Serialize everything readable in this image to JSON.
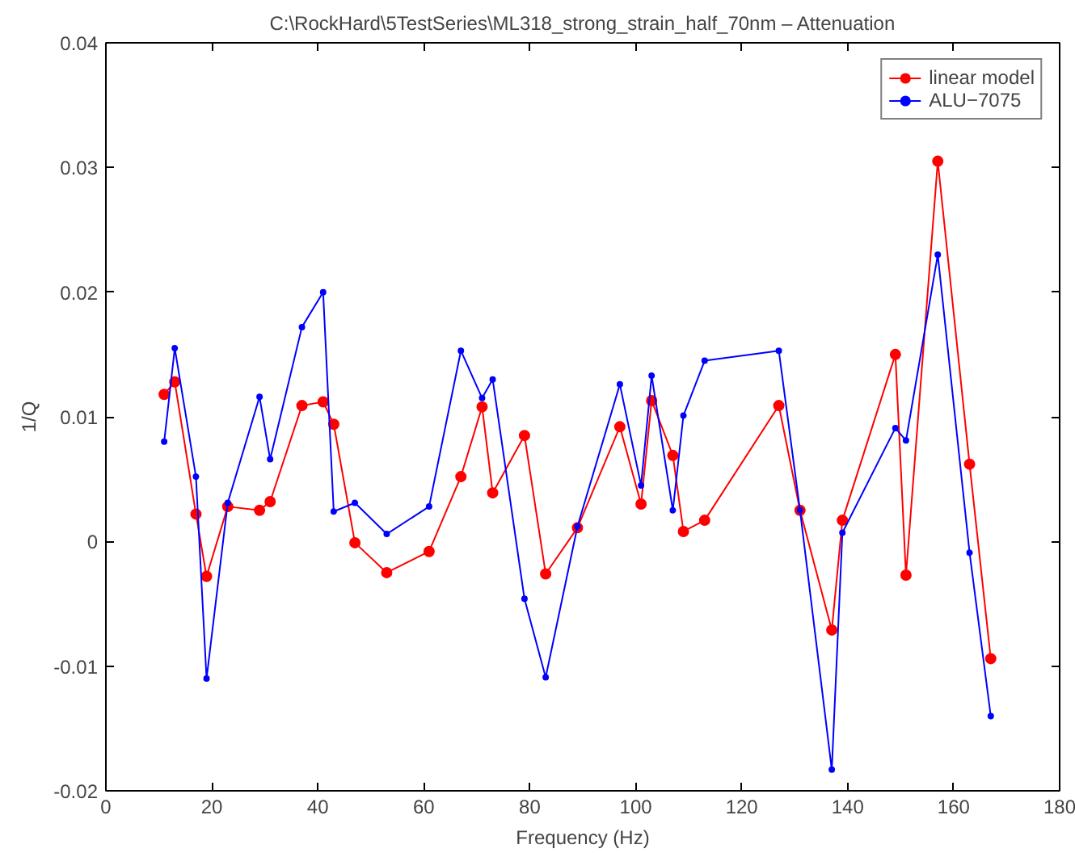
{
  "chart_data": {
    "type": "line",
    "title": "C:\\RockHard\\5TestSeries\\ML318_strong_strain_half_70nm – Attenuation",
    "xlabel": "Frequency (Hz)",
    "ylabel": "1/Q",
    "x": [
      11,
      13,
      17,
      19,
      23,
      29,
      31,
      37,
      41,
      43,
      47,
      53,
      61,
      67,
      71,
      73,
      79,
      83,
      89,
      97,
      101,
      103,
      107,
      109,
      113,
      127,
      131,
      137,
      139,
      149,
      151,
      157,
      163,
      167
    ],
    "series": [
      {
        "name": "linear model",
        "color": "#ff0000",
        "values": [
          0.0118,
          0.0128,
          0.0022,
          -0.0028,
          0.0028,
          0.0025,
          0.0032,
          0.0109,
          0.0112,
          0.0094,
          -0.0001,
          -0.0025,
          -0.0008,
          0.0052,
          0.0108,
          0.0039,
          0.0085,
          -0.0026,
          0.0011,
          0.0092,
          0.003,
          0.0113,
          0.0069,
          0.0008,
          0.0017,
          0.0109,
          0.0025,
          -0.0071,
          0.0017,
          0.015,
          -0.0027,
          0.0305,
          0.0062,
          -0.0094
        ]
      },
      {
        "name": "ALU−7075",
        "color": "#0000ff",
        "values": [
          0.008,
          0.0155,
          0.0052,
          -0.011,
          0.0031,
          0.0116,
          0.0066,
          0.0172,
          0.02,
          0.0024,
          0.0031,
          0.0006,
          0.0028,
          0.0153,
          0.0115,
          0.013,
          -0.0046,
          -0.0109,
          0.0012,
          0.0126,
          0.0045,
          0.0133,
          0.0025,
          0.0101,
          0.0145,
          0.0153,
          0.0025,
          -0.0183,
          0.0007,
          0.0091,
          0.0081,
          0.023,
          -0.0009,
          -0.014
        ]
      }
    ],
    "xlim": [
      0,
      180
    ],
    "xticks": [
      0,
      20,
      40,
      60,
      80,
      100,
      120,
      140,
      160,
      180
    ],
    "ylim": [
      -0.02,
      0.04
    ],
    "yticks": [
      -0.02,
      -0.01,
      0,
      0.01,
      0.02,
      0.03,
      0.04
    ],
    "grid": false,
    "legend": "top right",
    "marker": "circle",
    "line_style": "solid"
  }
}
